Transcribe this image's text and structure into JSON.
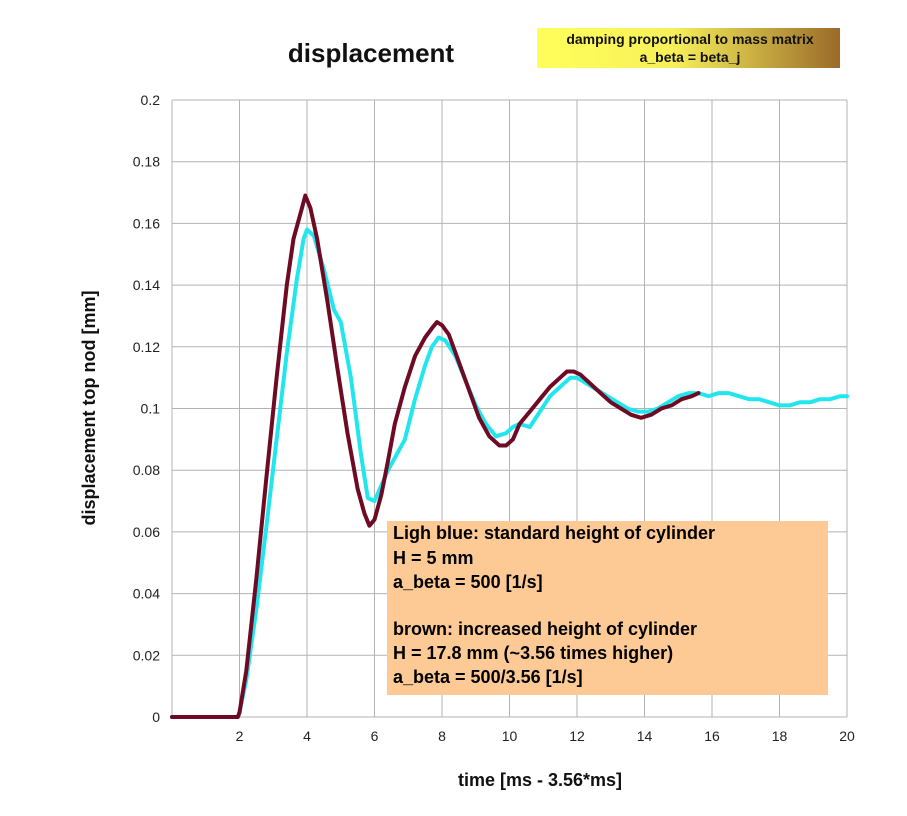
{
  "chart_data": {
    "type": "line",
    "title": "displacement",
    "xlabel": "time [ms - 3.56*ms]",
    "ylabel": "displacement top nod [mm]",
    "xlim": [
      0,
      20
    ],
    "ylim": [
      0,
      0.2
    ],
    "x_ticks": [
      "2",
      "4",
      "6",
      "8",
      "10",
      "12",
      "14",
      "16",
      "18",
      "20"
    ],
    "y_ticks": [
      "0",
      "0.02",
      "0.04",
      "0.06",
      "0.08",
      "0.1",
      "0.12",
      "0.14",
      "0.16",
      "0.18",
      "0.2"
    ],
    "grid": true,
    "colors": {
      "light_blue": "#22e6ee",
      "brown": "#6e0a24",
      "note_gradient_start": "#ffff5a",
      "note_gradient_end": "#9a6a2a",
      "text_box": "#fdca96",
      "grid": "#b3b3b3"
    },
    "annotation_top": {
      "line1": "damping proportional to mass matrix",
      "line2": "a_beta = beta_j"
    },
    "annotation_box": {
      "lines": [
        "Ligh blue: standard height of cylinder",
        "H = 5 mm",
        "a_beta = 500 [1/s]",
        "",
        "brown: increased height of cylinder",
        "H = 17.8 mm (~3.56 times higher)",
        "a_beta = 500/3.56 [1/s]"
      ]
    },
    "series": [
      {
        "color": "#22e6ee",
        "x": [
          0,
          1,
          1.95,
          2.0,
          2.2,
          2.5,
          2.8,
          3.1,
          3.4,
          3.7,
          3.9,
          4.0,
          4.2,
          4.5,
          4.8,
          5.0,
          5.3,
          5.6,
          5.8,
          6.0,
          6.2,
          6.4,
          6.6,
          6.9,
          7.2,
          7.5,
          7.7,
          7.9,
          8.1,
          8.4,
          8.7,
          9.0,
          9.3,
          9.6,
          9.9,
          10.1,
          10.3,
          10.6,
          10.9,
          11.2,
          11.5,
          11.8,
          12.0,
          12.3,
          12.6,
          12.9,
          13.2,
          13.5,
          13.8,
          14.1,
          14.4,
          14.7,
          15.0,
          15.3,
          15.6,
          15.9,
          16.2,
          16.5,
          16.8,
          17.1,
          17.4,
          17.7,
          18.0,
          18.3,
          18.6,
          18.9,
          19.2,
          19.5,
          19.8,
          20.0
        ],
        "y": [
          0,
          0,
          0,
          0.0015,
          0.012,
          0.035,
          0.062,
          0.09,
          0.118,
          0.142,
          0.155,
          0.158,
          0.156,
          0.145,
          0.132,
          0.128,
          0.11,
          0.085,
          0.071,
          0.07,
          0.075,
          0.08,
          0.084,
          0.09,
          0.103,
          0.114,
          0.12,
          0.123,
          0.122,
          0.117,
          0.109,
          0.101,
          0.095,
          0.091,
          0.092,
          0.094,
          0.095,
          0.094,
          0.099,
          0.104,
          0.107,
          0.11,
          0.11,
          0.108,
          0.106,
          0.104,
          0.102,
          0.1,
          0.099,
          0.099,
          0.1,
          0.102,
          0.104,
          0.105,
          0.105,
          0.104,
          0.105,
          0.105,
          0.104,
          0.103,
          0.103,
          0.102,
          0.101,
          0.101,
          0.102,
          0.102,
          0.103,
          0.103,
          0.104,
          0.104
        ]
      },
      {
        "color": "#6e0a24",
        "x": [
          0,
          1,
          1.95,
          2.0,
          2.2,
          2.5,
          2.8,
          3.1,
          3.4,
          3.6,
          3.8,
          3.95,
          4.1,
          4.3,
          4.6,
          4.9,
          5.2,
          5.5,
          5.7,
          5.85,
          6.0,
          6.2,
          6.4,
          6.6,
          6.9,
          7.2,
          7.5,
          7.7,
          7.85,
          8.0,
          8.2,
          8.5,
          8.8,
          9.1,
          9.4,
          9.7,
          9.9,
          10.1,
          10.3,
          10.6,
          10.9,
          11.2,
          11.5,
          11.7,
          11.9,
          12.1,
          12.4,
          12.7,
          13.0,
          13.3,
          13.6,
          13.9,
          14.2,
          14.5,
          14.8,
          15.1,
          15.4,
          15.6
        ],
        "y": [
          0,
          0,
          0,
          0.0015,
          0.015,
          0.045,
          0.078,
          0.11,
          0.14,
          0.155,
          0.163,
          0.169,
          0.165,
          0.155,
          0.135,
          0.113,
          0.092,
          0.074,
          0.066,
          0.062,
          0.064,
          0.072,
          0.083,
          0.095,
          0.107,
          0.117,
          0.123,
          0.126,
          0.128,
          0.127,
          0.124,
          0.115,
          0.106,
          0.097,
          0.091,
          0.088,
          0.088,
          0.09,
          0.095,
          0.099,
          0.103,
          0.107,
          0.11,
          0.112,
          0.112,
          0.111,
          0.108,
          0.105,
          0.102,
          0.1,
          0.098,
          0.097,
          0.098,
          0.1,
          0.101,
          0.103,
          0.104,
          0.105
        ]
      }
    ]
  }
}
